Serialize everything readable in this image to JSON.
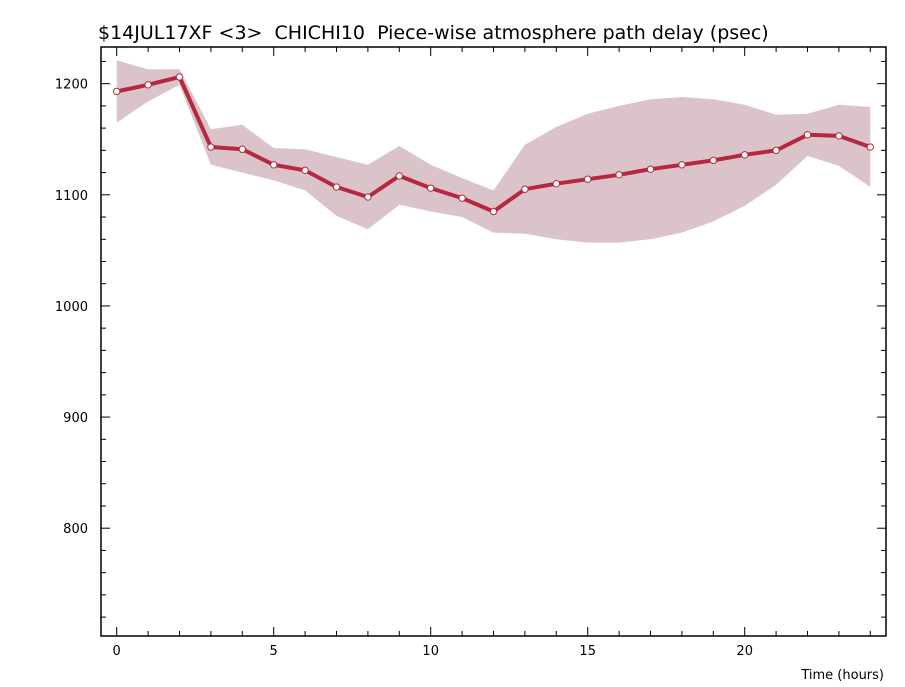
{
  "chart_data": {
    "type": "line",
    "title": "$14JUL17XF <3>  CHICHI10  Piece-wise atmosphere path delay (psec)",
    "xlabel": "Time (hours)",
    "ylabel": "",
    "xlim": [
      -0.5,
      24.5
    ],
    "ylim": [
      703,
      1233
    ],
    "x_ticks": [
      0,
      5,
      10,
      15,
      20
    ],
    "y_ticks": [
      800,
      900,
      1000,
      1100,
      1200
    ],
    "x_minor_step": 1,
    "y_minor_step": 20,
    "grid": false,
    "line_color": "#b5283f",
    "band_color": "#dbc4c9",
    "series": [
      {
        "x": [
          0,
          1,
          2,
          3,
          4,
          5,
          6,
          7,
          8,
          9,
          10,
          11,
          12,
          13,
          14,
          15,
          16,
          17,
          18,
          19,
          20,
          21,
          22,
          23,
          24
        ],
        "values": [
          1193,
          1199,
          1206,
          1143,
          1141,
          1127,
          1122,
          1107,
          1098,
          1117,
          1106,
          1097,
          1085,
          1105,
          1110,
          1114,
          1118,
          1123,
          1127,
          1131,
          1136,
          1140,
          1154,
          1153,
          1143
        ],
        "upper": [
          1221,
          1213,
          1213,
          1159,
          1163,
          1142,
          1141,
          1134,
          1127,
          1144,
          1127,
          1115,
          1104,
          1145,
          1161,
          1173,
          1180,
          1186,
          1188,
          1186,
          1181,
          1172,
          1173,
          1181,
          1179
        ],
        "lower": [
          1165,
          1184,
          1199,
          1127,
          1120,
          1113,
          1104,
          1081,
          1069,
          1091,
          1085,
          1080,
          1066,
          1065,
          1060,
          1057,
          1057,
          1060,
          1066,
          1076,
          1090,
          1109,
          1135,
          1126,
          1107
        ]
      }
    ]
  }
}
